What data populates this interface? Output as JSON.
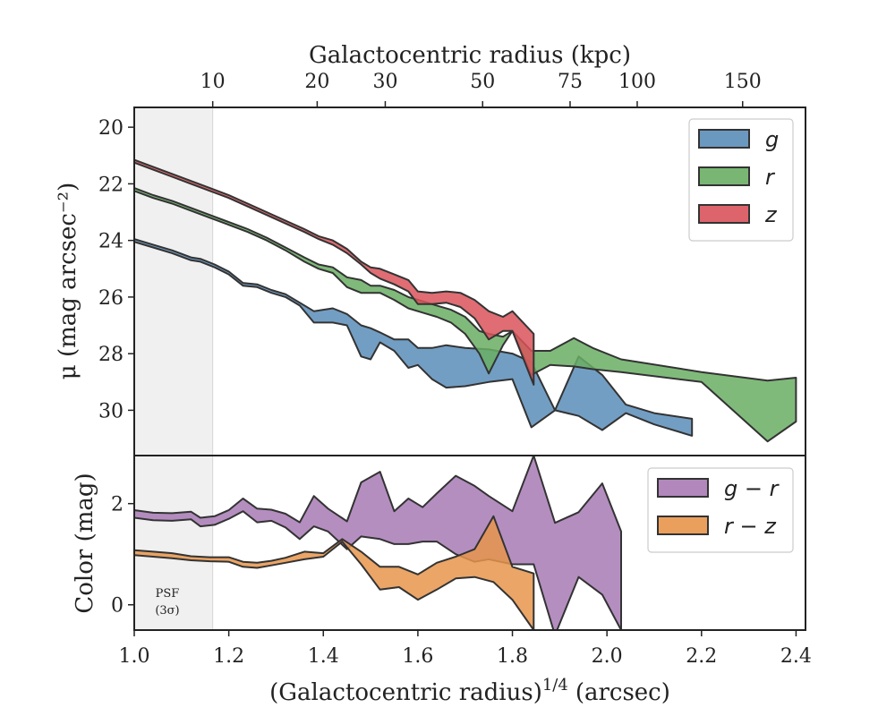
{
  "chart_data": {
    "type": "area",
    "top_axis_label": "Galactocentric radius (kpc)",
    "top_axis_ticks": [
      {
        "label": "10",
        "x": 1.166
      },
      {
        "label": "20",
        "x": 1.387
      },
      {
        "label": "30",
        "x": 1.531
      },
      {
        "label": "50",
        "x": 1.737
      },
      {
        "label": "75",
        "x": 1.922
      },
      {
        "label": "100",
        "x": 2.064
      },
      {
        "label": "150",
        "x": 2.287
      }
    ],
    "xlabel": "(Galactocentric radius)",
    "xlabel_exponent": "1/4",
    "xlabel_unit": "(arcsec)",
    "xlim": [
      1.0,
      2.42
    ],
    "x_ticks": [
      "1.0",
      "1.2",
      "1.4",
      "1.6",
      "1.8",
      "2.0",
      "2.2",
      "2.4"
    ],
    "psf_region": {
      "x_max": 1.166,
      "label_line1": "PSF",
      "label_line2": "(3σ)"
    },
    "panels": [
      {
        "name": "surface-brightness",
        "ylabel": "μ (mag arcsec⁻²)",
        "ylim": [
          31.6,
          19.3
        ],
        "y_inverted": true,
        "y_ticks": [
          "20",
          "22",
          "24",
          "26",
          "28",
          "30"
        ],
        "legend": {
          "position": "top-right"
        },
        "series": [
          {
            "name": "g",
            "color": "#5b8db8",
            "x": [
              1.0,
              1.04,
              1.08,
              1.12,
              1.14,
              1.17,
              1.2,
              1.23,
              1.26,
              1.29,
              1.32,
              1.35,
              1.38,
              1.42,
              1.45,
              1.48,
              1.5,
              1.52,
              1.55,
              1.58,
              1.6,
              1.63,
              1.66,
              1.7,
              1.75,
              1.8,
              1.84,
              1.89,
              1.94,
              1.99,
              2.04,
              2.1,
              2.18
            ],
            "lower": [
              23.95,
              24.15,
              24.35,
              24.6,
              24.65,
              24.85,
              25.1,
              25.5,
              25.55,
              25.75,
              25.9,
              26.2,
              26.5,
              26.4,
              26.6,
              27.0,
              27.1,
              27.25,
              27.5,
              27.5,
              27.8,
              27.8,
              27.7,
              27.8,
              27.85,
              28.0,
              28.3,
              30.0,
              28.1,
              28.75,
              29.8,
              30.1,
              30.3
            ],
            "upper": [
              24.05,
              24.25,
              24.45,
              24.7,
              24.75,
              24.95,
              25.2,
              25.6,
              25.65,
              25.85,
              26.0,
              26.3,
              26.9,
              26.9,
              27.0,
              28.1,
              28.2,
              27.6,
              27.9,
              28.5,
              28.4,
              28.9,
              29.2,
              29.15,
              29.0,
              28.9,
              30.6,
              30.0,
              30.2,
              30.7,
              30.1,
              30.5,
              30.9
            ]
          },
          {
            "name": "r",
            "color": "#6aae64",
            "x": [
              1.0,
              1.04,
              1.08,
              1.12,
              1.16,
              1.2,
              1.24,
              1.28,
              1.32,
              1.36,
              1.39,
              1.42,
              1.45,
              1.48,
              1.5,
              1.52,
              1.55,
              1.58,
              1.61,
              1.64,
              1.67,
              1.7,
              1.73,
              1.75,
              1.78,
              1.8,
              1.84,
              1.88,
              1.93,
              1.97,
              2.03,
              2.2,
              2.34,
              2.4
            ],
            "lower": [
              22.15,
              22.4,
              22.6,
              22.85,
              23.1,
              23.35,
              23.6,
              23.9,
              24.25,
              24.6,
              24.85,
              24.95,
              25.3,
              25.4,
              25.6,
              25.6,
              25.75,
              26.0,
              26.15,
              26.3,
              26.45,
              26.7,
              27.2,
              27.3,
              27.4,
              27.2,
              27.9,
              27.9,
              27.45,
              27.8,
              28.2,
              28.65,
              28.95,
              28.85
            ],
            "upper": [
              22.25,
              22.5,
              22.7,
              22.95,
              23.2,
              23.45,
              23.7,
              24.0,
              24.35,
              24.75,
              25.0,
              25.15,
              25.65,
              25.85,
              25.85,
              25.85,
              26.1,
              26.4,
              26.55,
              26.7,
              26.9,
              27.3,
              28.0,
              28.7,
              27.7,
              27.2,
              28.75,
              28.4,
              28.45,
              28.55,
              28.65,
              29.0,
              31.1,
              30.4
            ]
          },
          {
            "name": "z",
            "color": "#d9535b",
            "x": [
              1.0,
              1.04,
              1.08,
              1.12,
              1.16,
              1.2,
              1.24,
              1.28,
              1.32,
              1.36,
              1.39,
              1.42,
              1.45,
              1.48,
              1.5,
              1.52,
              1.55,
              1.58,
              1.6,
              1.63,
              1.66,
              1.69,
              1.72,
              1.75,
              1.78,
              1.8,
              1.845
            ],
            "lower": [
              21.15,
              21.4,
              21.65,
              21.9,
              22.15,
              22.4,
              22.7,
              23.0,
              23.3,
              23.6,
              23.85,
              24.0,
              24.3,
              24.75,
              24.95,
              25.0,
              25.2,
              25.4,
              25.8,
              25.85,
              25.8,
              25.85,
              26.1,
              26.5,
              26.7,
              26.5,
              27.3
            ],
            "upper": [
              21.25,
              21.5,
              21.75,
              22.0,
              22.25,
              22.5,
              22.8,
              23.1,
              23.4,
              23.7,
              23.95,
              24.15,
              24.45,
              24.85,
              25.15,
              25.35,
              25.55,
              25.8,
              26.25,
              26.25,
              26.2,
              26.35,
              26.75,
              27.5,
              27.2,
              27.2,
              29.1
            ]
          }
        ]
      },
      {
        "name": "color",
        "ylabel": "Color (mag)",
        "ylim": [
          -0.5,
          2.95
        ],
        "y_inverted": false,
        "y_ticks": [
          "0",
          "2"
        ],
        "legend": {
          "position": "top-right"
        },
        "series": [
          {
            "name": "g − r",
            "color": "#a87ab5",
            "x": [
              1.0,
              1.04,
              1.08,
              1.12,
              1.14,
              1.17,
              1.2,
              1.23,
              1.26,
              1.29,
              1.32,
              1.35,
              1.38,
              1.41,
              1.45,
              1.48,
              1.52,
              1.55,
              1.58,
              1.61,
              1.64,
              1.68,
              1.72,
              1.75,
              1.8,
              1.845,
              1.89,
              1.94,
              1.99,
              2.03
            ],
            "lower": [
              1.72,
              1.67,
              1.66,
              1.69,
              1.55,
              1.58,
              1.7,
              1.85,
              1.63,
              1.66,
              1.53,
              1.3,
              1.55,
              1.45,
              1.1,
              1.35,
              1.3,
              1.2,
              1.2,
              1.25,
              1.25,
              1.0,
              0.85,
              0.9,
              0.8,
              0.8,
              -0.6,
              0.55,
              0.2,
              -0.5
            ],
            "upper": [
              1.87,
              1.82,
              1.81,
              1.84,
              1.72,
              1.75,
              1.87,
              2.1,
              1.9,
              1.88,
              1.8,
              1.63,
              2.15,
              1.9,
              1.65,
              2.42,
              2.63,
              1.85,
              2.1,
              1.93,
              2.2,
              2.55,
              2.35,
              2.15,
              1.85,
              2.95,
              1.62,
              1.83,
              2.4,
              1.45
            ]
          },
          {
            "name": "r − z",
            "color": "#e8954b",
            "x": [
              1.0,
              1.04,
              1.08,
              1.12,
              1.16,
              1.2,
              1.23,
              1.26,
              1.29,
              1.32,
              1.36,
              1.4,
              1.44,
              1.48,
              1.52,
              1.56,
              1.6,
              1.64,
              1.68,
              1.72,
              1.76,
              1.8,
              1.845
            ],
            "lower": [
              0.98,
              0.95,
              0.92,
              0.88,
              0.86,
              0.85,
              0.75,
              0.73,
              0.78,
              0.83,
              0.9,
              0.95,
              1.25,
              0.8,
              0.3,
              0.35,
              0.1,
              0.3,
              0.52,
              0.55,
              0.45,
              0.1,
              -0.5
            ],
            "upper": [
              1.08,
              1.05,
              1.02,
              0.96,
              0.94,
              0.94,
              0.85,
              0.83,
              0.87,
              0.93,
              1.05,
              1.02,
              1.3,
              1.05,
              0.75,
              0.75,
              0.6,
              0.83,
              0.95,
              1.1,
              1.75,
              0.75,
              0.62
            ]
          }
        ]
      }
    ]
  }
}
